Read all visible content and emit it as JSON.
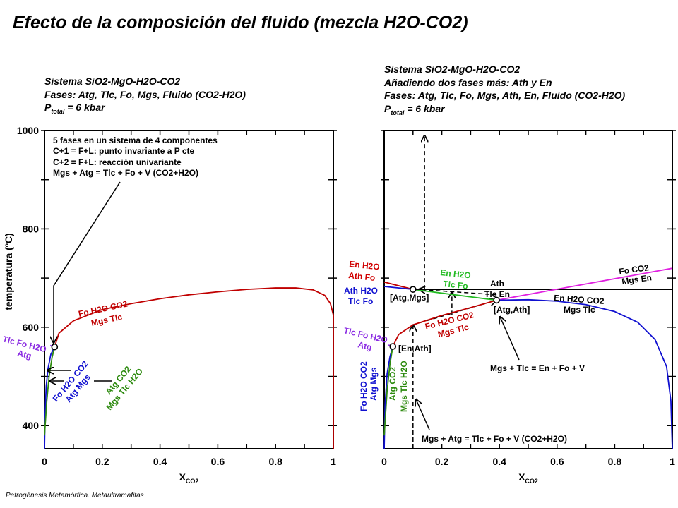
{
  "title": "Efecto de la composición del fluido (mezcla H2O-CO2)",
  "footer": "Petrogénesis  Metamórfica.  Metaultramafitas",
  "colors": {
    "red": "#c00000",
    "blue": "#1010d0",
    "green": "#2e8b10",
    "brightgreen": "#22bb22",
    "purple": "#8a2be2",
    "magenta": "#e020e0",
    "black": "#000000"
  },
  "left_panel": {
    "subtitle": [
      "Sistema SiO2-MgO-H2O-CO2",
      "Fases: Atg, Tlc, Fo, Mgs, Fluido (CO2-H2O)"
    ],
    "pressure": {
      "p": "P",
      "sub": "total",
      "rest": " = 6 kbar"
    },
    "annotation": [
      "5 fases en un sistema de 4 componentes",
      "C+1 = F+L: punto invariante a P cte",
      "C+2 = F+L: reacción univariante",
      "Mgs + Atg = Tlc + Fo + V (CO2+H2O)"
    ],
    "labels": {
      "red_top": "Fo H2O CO2",
      "red_bot": "Mgs Tlc",
      "purple_top": "Tlc Fo H2O",
      "purple_bot": "Atg",
      "blue_top": "Fo H2O CO2",
      "blue_bot": "Atg Mgs",
      "green_top": "Atg CO2",
      "green_bot": "Mgs Tlc H2O"
    }
  },
  "right_panel": {
    "subtitle": [
      "Sistema SiO2-MgO-H2O-CO2",
      "Añadiendo dos fases más: Ath y En",
      "Fases: Atg, Tlc, Fo, Mgs, Ath, En, Fluido (CO2-H2O)"
    ],
    "pressure": {
      "p": "P",
      "sub": "total",
      "rest": " = 6 kbar"
    },
    "labels": {
      "enh2o_top": "En H2O",
      "enh2o_bot": "Ath Fo",
      "athh2o_top": "Ath H2O",
      "athh2o_bot": "Tlc Fo",
      "green_top": "En H2O",
      "green_bot": "Tlc Fo",
      "ath_top": "Ath",
      "ath_bot": "Tlc En",
      "foco2_top": "Fo CO2",
      "foco2_bot": "Mgs En",
      "enco2_top": "En H2O CO2",
      "enco2_bot": "Mgs Tlc",
      "red_top": "Fo H2O CO2",
      "red_bot": "Mgs Tlc",
      "purple_top": "Tlc Fo H2O",
      "purple_bot": "Atg",
      "blue_top": "Fo H2O CO2",
      "blue_bot": "Atg Mgs",
      "green2_top": "Atg CO2",
      "green2_bot": "Mgs Tlc H2O",
      "inv1": "[Atg,Mgs]",
      "inv2": "[Atg,Ath]",
      "inv3": "[En,Ath]",
      "reaction1": "Mgs + Tlc = En + Fo + V",
      "reaction2": "Mgs + Atg = Tlc + Fo + V (CO2+H2O)"
    }
  },
  "chart_data": [
    {
      "type": "line",
      "xlabel": "X",
      "xlabel_sub": "CO2",
      "ylabel": "temperatura (ºC)",
      "xlim": [
        0,
        1
      ],
      "ylim": [
        353,
        1000
      ],
      "xticks": [
        0,
        0.2,
        0.4,
        0.6,
        0.8,
        1
      ],
      "xticklabels": [
        "0",
        "0.2",
        "0.4",
        "0.6",
        "0.8",
        "1"
      ],
      "yticks": [
        400,
        600,
        800,
        1000
      ],
      "yticklabels": [
        "400",
        "600",
        "800",
        "1000"
      ],
      "series": [
        {
          "name": "Mgs Tlc / Fo H2O CO2",
          "color": "red",
          "points": [
            [
              0.035,
              560
            ],
            [
              0.05,
              588
            ],
            [
              0.1,
              613
            ],
            [
              0.2,
              636
            ],
            [
              0.3,
              648
            ],
            [
              0.4,
              658
            ],
            [
              0.5,
              666
            ],
            [
              0.6,
              672
            ],
            [
              0.7,
              677
            ],
            [
              0.8,
              680
            ],
            [
              0.87,
              680
            ],
            [
              0.93,
              676
            ],
            [
              0.97,
              665
            ],
            [
              0.99,
              648
            ],
            [
              1.0,
              625
            ],
            [
              1.0,
              353
            ]
          ]
        },
        {
          "name": "Atg Mgs / Fo H2O CO2",
          "color": "blue",
          "points": [
            [
              0,
              353
            ],
            [
              0.002,
              420
            ],
            [
              0.006,
              480
            ],
            [
              0.012,
              515
            ],
            [
              0.022,
              545
            ],
            [
              0.035,
              560
            ]
          ]
        },
        {
          "name": "Mgs Tlc H2O / Atg CO2",
          "color": "green",
          "points": [
            [
              0,
              380
            ],
            [
              0.008,
              450
            ],
            [
              0.016,
              500
            ],
            [
              0.026,
              538
            ],
            [
              0.035,
              560
            ]
          ]
        },
        {
          "name": "Atg / Tlc Fo H2O",
          "color": "purple",
          "points": [
            [
              0.02,
              563
            ],
            [
              0.035,
              560
            ]
          ]
        }
      ],
      "invariant_points": [
        [
          0.035,
          560
        ]
      ]
    },
    {
      "type": "line",
      "xlabel": "X",
      "xlabel_sub": "CO2",
      "xlim": [
        0,
        1
      ],
      "ylim": [
        353,
        1000
      ],
      "xticks": [
        0,
        0.2,
        0.4,
        0.6,
        0.8,
        1
      ],
      "xticklabels": [
        "0",
        "0.2",
        "0.4",
        "0.6",
        "0.8",
        "1"
      ],
      "yticks": [
        400,
        600,
        800,
        1000
      ],
      "series": [
        {
          "name": "Ath Fo / En H2O",
          "color": "red",
          "points": [
            [
              0,
              692
            ],
            [
              0.1,
              677
            ]
          ]
        },
        {
          "name": "Tlc Fo / Ath H2O",
          "color": "blue",
          "points": [
            [
              0,
              683
            ],
            [
              0.1,
              677
            ]
          ]
        },
        {
          "name": "Tlc Fo / En H2O",
          "color": "brightgreen",
          "points": [
            [
              0.1,
              677
            ],
            [
              0.39,
              655
            ]
          ]
        },
        {
          "name": "Tlc En / Ath",
          "color": "black",
          "points": [
            [
              0.1,
              677
            ],
            [
              1,
              677
            ]
          ]
        },
        {
          "name": "Mgs En / Fo CO2",
          "color": "magenta",
          "points": [
            [
              0.39,
              655
            ],
            [
              1,
              720
            ]
          ]
        },
        {
          "name": "Mgs Tlc / En H2O CO2",
          "color": "blue",
          "points": [
            [
              0.39,
              655
            ],
            [
              0.5,
              656
            ],
            [
              0.6,
              653
            ],
            [
              0.7,
              646
            ],
            [
              0.8,
              632
            ],
            [
              0.88,
              610
            ],
            [
              0.94,
              575
            ],
            [
              0.98,
              520
            ],
            [
              0.995,
              450
            ],
            [
              1,
              353
            ]
          ]
        },
        {
          "name": "Mgs Tlc / Fo H2O CO2",
          "color": "red",
          "points": [
            [
              0.03,
              561
            ],
            [
              0.05,
              585
            ],
            [
              0.1,
              605
            ],
            [
              0.2,
              624
            ],
            [
              0.3,
              640
            ],
            [
              0.39,
              655
            ]
          ]
        },
        {
          "name": "Atg Mgs / Fo H2O CO2",
          "color": "blue",
          "points": [
            [
              0,
              353
            ],
            [
              0.003,
              440
            ],
            [
              0.01,
              505
            ],
            [
              0.02,
              540
            ],
            [
              0.03,
              561
            ]
          ]
        },
        {
          "name": "Mgs Tlc H2O / Atg CO2",
          "color": "green",
          "points": [
            [
              0,
              380
            ],
            [
              0.01,
              470
            ],
            [
              0.02,
              525
            ],
            [
              0.03,
              561
            ]
          ]
        },
        {
          "name": "Atg / Tlc Fo H2O",
          "color": "purple",
          "points": [
            [
              0.015,
              564
            ],
            [
              0.03,
              561
            ]
          ]
        }
      ],
      "dashed_paths": [
        [
          [
            0.1,
            353
          ],
          [
            0.1,
            605
          ]
        ],
        [
          [
            0.1,
            605
          ],
          [
            0.39,
            655
          ]
        ],
        [
          [
            0.235,
            625
          ],
          [
            0.235,
            672
          ]
        ],
        [
          [
            0.39,
            666
          ],
          [
            0.12,
            677
          ]
        ],
        [
          [
            0.14,
            677
          ],
          [
            1.0,
            677
          ]
        ],
        [
          [
            0.14,
            677
          ],
          [
            0.14,
            990
          ]
        ]
      ],
      "invariant_points": [
        [
          0.1,
          677
        ],
        [
          0.39,
          655
        ],
        [
          0.03,
          561
        ]
      ]
    }
  ]
}
